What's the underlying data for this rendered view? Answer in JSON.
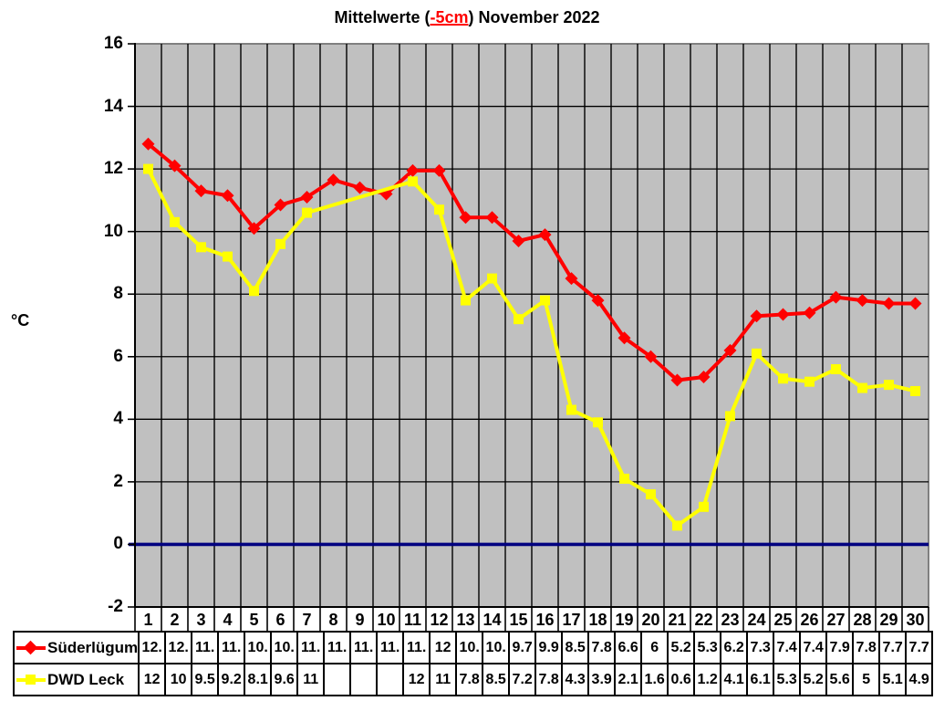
{
  "title": {
    "prefix": "Mittelwerte (",
    "highlight": "-5cm",
    "suffix": ") November 2022"
  },
  "axes": {
    "y_unit": "°C",
    "y_ticks": [
      16,
      14,
      12,
      10,
      8,
      6,
      4,
      2,
      0,
      -2
    ]
  },
  "colors": {
    "suederluegum": "#ff0000",
    "dwd_leck": "#ffff00",
    "zero_line": "#000080",
    "plot_bg": "#c0c0c0",
    "grid": "#000000",
    "plot_border": "#808080",
    "title_highlight": "#ff0000"
  },
  "chart_data": {
    "type": "line",
    "title": "Mittelwerte (-5cm) November 2022",
    "xlabel": "",
    "ylabel": "°C",
    "ylim": [
      -2,
      16
    ],
    "ytick_step": 2,
    "grid": true,
    "plot_background": "#c0c0c0",
    "zero_line": {
      "y": 0,
      "color": "#000080"
    },
    "legend_position": "bottom-table",
    "x": [
      1,
      2,
      3,
      4,
      5,
      6,
      7,
      8,
      9,
      10,
      11,
      12,
      13,
      14,
      15,
      16,
      17,
      18,
      19,
      20,
      21,
      22,
      23,
      24,
      25,
      26,
      27,
      28,
      29,
      30
    ],
    "series": [
      {
        "name": "Süderlügum",
        "color": "#ff0000",
        "marker": "diamond",
        "values": [
          12.8,
          12.1,
          11.3,
          11.15,
          10.1,
          10.85,
          11.1,
          11.65,
          11.4,
          11.2,
          11.95,
          11.95,
          10.45,
          10.45,
          9.7,
          9.9,
          8.5,
          7.8,
          6.6,
          6.0,
          5.25,
          5.35,
          6.2,
          7.3,
          7.35,
          7.4,
          7.9,
          7.8,
          7.7,
          7.7
        ]
      },
      {
        "name": "DWD Leck",
        "color": "#ffff00",
        "marker": "square",
        "values": [
          12.0,
          10.3,
          9.5,
          9.2,
          8.1,
          9.6,
          10.6,
          null,
          null,
          null,
          11.6,
          10.7,
          7.8,
          8.5,
          7.2,
          7.8,
          4.3,
          3.9,
          2.1,
          1.6,
          0.6,
          1.2,
          4.1,
          6.1,
          5.3,
          5.2,
          5.6,
          5.0,
          5.1,
          4.9
        ]
      }
    ]
  },
  "table": {
    "rows": [
      {
        "label": "Süderlügum",
        "marker": "diamond",
        "color": "#ff0000",
        "values": [
          "12.",
          "12.",
          "11.",
          "11.",
          "10.",
          "10.",
          "11.",
          "11.",
          "11.",
          "11.",
          "11.",
          "12",
          "10.",
          "10.",
          "9.7",
          "9.9",
          "8.5",
          "7.8",
          "6.6",
          "6",
          "5.2",
          "5.3",
          "6.2",
          "7.3",
          "7.4",
          "7.4",
          "7.9",
          "7.8",
          "7.7",
          "7.7"
        ]
      },
      {
        "label": "DWD Leck",
        "marker": "square",
        "color": "#ffff00",
        "values": [
          "12",
          "10",
          "9.5",
          "9.2",
          "8.1",
          "9.6",
          "11",
          "",
          "",
          "",
          "12",
          "11",
          "7.8",
          "8.5",
          "7.2",
          "7.8",
          "4.3",
          "3.9",
          "2.1",
          "1.6",
          "0.6",
          "1.2",
          "4.1",
          "6.1",
          "5.3",
          "5.2",
          "5.6",
          "5",
          "5.1",
          "4.9"
        ]
      }
    ]
  }
}
